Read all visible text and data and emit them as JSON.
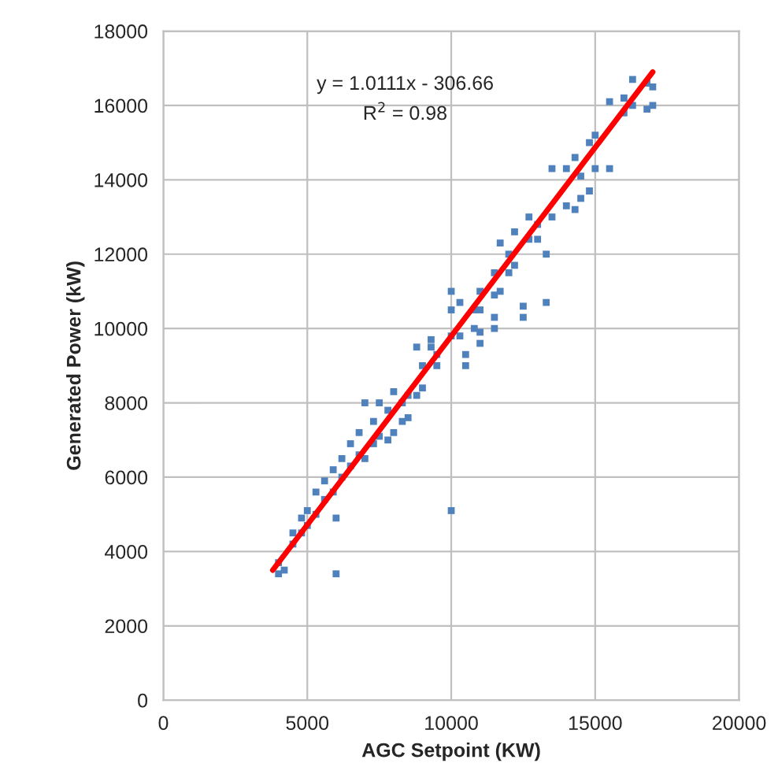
{
  "chart_data": {
    "type": "scatter",
    "xlabel": "AGC Setpoint (KW)",
    "ylabel": "Generated Power (kW)",
    "annotations": [
      "y = 1.0111x - 306.66",
      "R$^{2}$ = 0.98"
    ],
    "xlim": [
      0,
      20000
    ],
    "ylim": [
      0,
      18000
    ],
    "xticks": [
      0,
      5000,
      10000,
      15000,
      20000
    ],
    "yticks": [
      0,
      2000,
      4000,
      6000,
      8000,
      10000,
      12000,
      14000,
      16000,
      18000
    ],
    "grid": true,
    "series": [
      {
        "color": "#4f81bd",
        "marker": "square",
        "x": [
          4000,
          4000,
          4200,
          4500,
          4500,
          4800,
          4800,
          5000,
          5000,
          5300,
          5300,
          5600,
          5600,
          6000,
          6000,
          5900,
          5900,
          6200,
          6200,
          6500,
          6500,
          6800,
          6800,
          7000,
          7000,
          7300,
          7300,
          7500,
          7500,
          7800,
          7800,
          8000,
          8000,
          8300,
          8300,
          8500,
          8500,
          8800,
          8800,
          9000,
          9000,
          9300,
          9300,
          9500,
          9500,
          10000,
          10000,
          10000,
          10000,
          10300,
          10300,
          10500,
          10500,
          10800,
          10800,
          11000,
          11000,
          11000,
          11000,
          11500,
          11500,
          11500,
          11500,
          11700,
          11700,
          12000,
          12000,
          12200,
          12200,
          12500,
          12500,
          12700,
          12700,
          13000,
          13000,
          13300,
          13300,
          13500,
          13500,
          14000,
          14000,
          14300,
          14300,
          14500,
          14500,
          14800,
          14800,
          15000,
          15000,
          15500,
          15500,
          16000,
          16000,
          16300,
          16300,
          16800,
          16800,
          17000,
          17000
        ],
        "values": [
          3400,
          3700,
          3500,
          4200,
          4500,
          4500,
          4900,
          4700,
          5100,
          5000,
          5600,
          5400,
          5900,
          3400,
          4900,
          5600,
          6200,
          6000,
          6500,
          6300,
          6900,
          6600,
          7200,
          6500,
          8000,
          6900,
          7500,
          7100,
          8000,
          7000,
          7800,
          7200,
          8300,
          7500,
          8000,
          7600,
          8200,
          8200,
          9500,
          8400,
          9000,
          9500,
          9700,
          9000,
          9300,
          5100,
          10500,
          9800,
          11000,
          9800,
          10700,
          9000,
          9300,
          10000,
          10500,
          9600,
          9900,
          10500,
          11000,
          10000,
          10300,
          10900,
          11500,
          11000,
          12300,
          11500,
          12000,
          11700,
          12600,
          10300,
          10600,
          12400,
          13000,
          12400,
          12800,
          10700,
          12000,
          13000,
          14300,
          13300,
          14300,
          13200,
          14600,
          13500,
          14100,
          13700,
          15000,
          14300,
          15200,
          14300,
          16100,
          15800,
          16200,
          16000,
          16700,
          15900,
          16600,
          16000,
          16500
        ]
      },
      {
        "type": "line",
        "color": "#ff0000",
        "x": [
          3800,
          17000
        ],
        "values": [
          3500,
          16900
        ]
      }
    ]
  }
}
